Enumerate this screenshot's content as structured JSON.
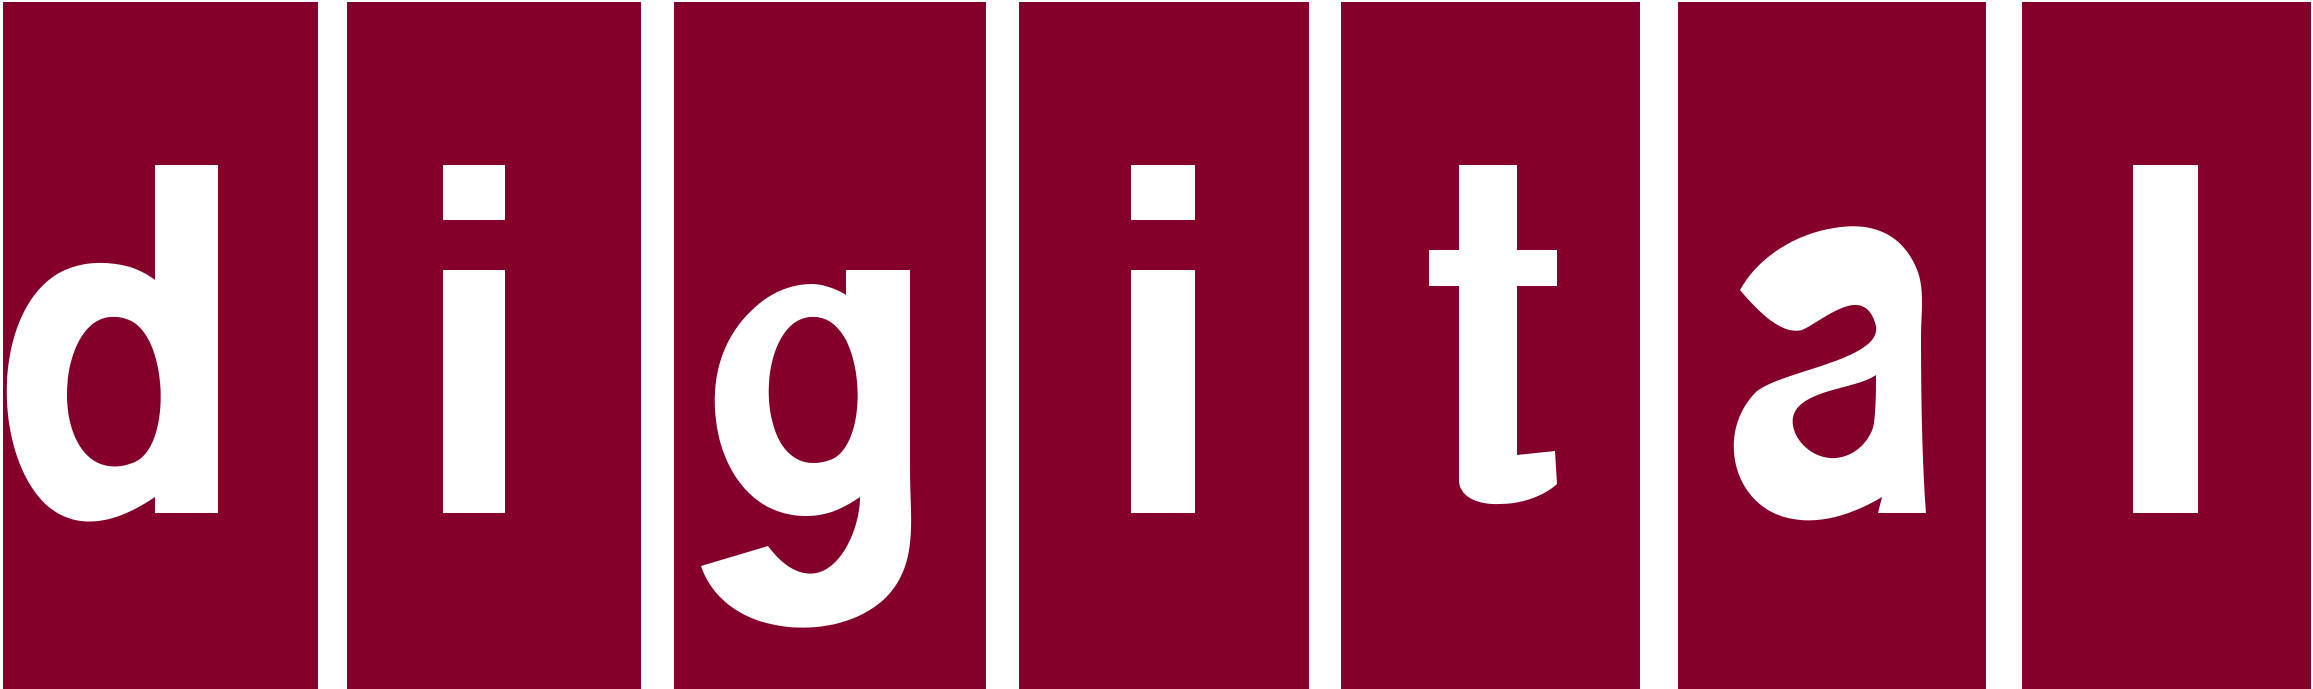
{
  "logo": {
    "wordmark": "digital",
    "letters": [
      "d",
      "i",
      "g",
      "i",
      "t",
      "a",
      "l"
    ]
  },
  "colors": {
    "tile": "#84002B",
    "letter": "#FFFFFF",
    "background": "#FFFFFF"
  }
}
